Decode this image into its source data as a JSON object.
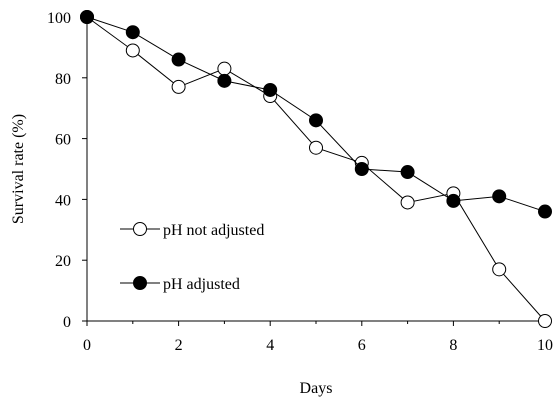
{
  "chart_data": {
    "type": "line",
    "xlabel": "Days",
    "ylabel": "Survival rate (%)",
    "xlim": [
      0,
      10
    ],
    "ylim": [
      0,
      100
    ],
    "x_ticks": [
      0,
      2,
      4,
      6,
      8,
      10
    ],
    "y_ticks": [
      0,
      20,
      40,
      60,
      80,
      100
    ],
    "x_tick_labels": [
      "0",
      "2",
      "4",
      "6",
      "8",
      "10"
    ],
    "y_tick_labels": [
      "0",
      "20",
      "40",
      "60",
      "80",
      "100"
    ],
    "grid": false,
    "legend_position": "left",
    "series": [
      {
        "name": "pH not adjusted",
        "marker": "open-circle",
        "x": [
          0,
          1,
          2,
          3,
          4,
          5,
          6,
          7,
          8,
          9,
          10
        ],
        "values": [
          100,
          89,
          77,
          83,
          74,
          57,
          52,
          39,
          42,
          17,
          0
        ]
      },
      {
        "name": "pH adjusted",
        "marker": "filled-circle",
        "x": [
          0,
          1,
          2,
          3,
          4,
          5,
          6,
          7,
          8,
          9,
          10
        ],
        "values": [
          100,
          95,
          86,
          79,
          76,
          66,
          50,
          49,
          39.5,
          41,
          36
        ]
      }
    ]
  }
}
